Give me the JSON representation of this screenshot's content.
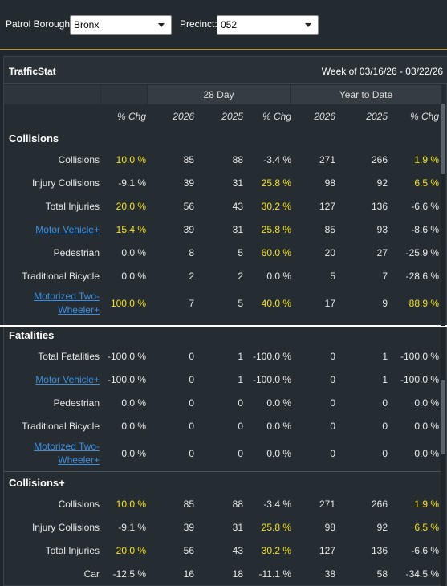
{
  "filters": {
    "borough_label": "Patrol Borough:",
    "borough_value": "Bronx",
    "precinct_label": "Precinct:",
    "precinct_value": "052"
  },
  "panel": {
    "title": "TrafficStat",
    "week": "Week of 03/16/26 - 03/22/26"
  },
  "groups": {
    "day28": "28 Day",
    "ytd": "Year to Date"
  },
  "columns": [
    "% Chg",
    "2026",
    "2025",
    "% Chg",
    "2026",
    "2025",
    "% Chg"
  ],
  "colors": {
    "highlight": "#f5e21a",
    "link": "#3d8fe0",
    "accent": "#b8932f"
  },
  "sections": [
    {
      "title": "Collisions",
      "rows": [
        {
          "label": "Collisions",
          "link": false,
          "v": [
            "10.0 %",
            "85",
            "88",
            "-3.4 %",
            "271",
            "266",
            "1.9 %"
          ],
          "hl": [
            0,
            6
          ]
        },
        {
          "label": "Injury Collisions",
          "link": false,
          "v": [
            "-9.1 %",
            "39",
            "31",
            "25.8 %",
            "98",
            "92",
            "6.5 %"
          ],
          "hl": [
            3,
            6
          ]
        },
        {
          "label": "Total Injuries",
          "link": false,
          "v": [
            "20.0 %",
            "56",
            "43",
            "30.2 %",
            "127",
            "136",
            "-6.6 %"
          ],
          "hl": [
            0,
            3
          ]
        },
        {
          "label": "Motor Vehicle+",
          "link": true,
          "v": [
            "15.4 %",
            "39",
            "31",
            "25.8 %",
            "85",
            "93",
            "-8.6 %"
          ],
          "hl": [
            0,
            3
          ]
        },
        {
          "label": "Pedestrian",
          "link": false,
          "v": [
            "0.0 %",
            "8",
            "5",
            "60.0 %",
            "20",
            "27",
            "-25.9 %"
          ],
          "hl": [
            3
          ]
        },
        {
          "label": "Traditional Bicycle",
          "link": false,
          "v": [
            "0.0 %",
            "2",
            "2",
            "0.0 %",
            "5",
            "7",
            "-28.6 %"
          ],
          "hl": []
        },
        {
          "label1": "Motorized Two-",
          "label2": "Wheeler+",
          "link": true,
          "v": [
            "100.0 %",
            "7",
            "5",
            "40.0 %",
            "17",
            "9",
            "88.9 %"
          ],
          "hl": [
            0,
            3,
            6
          ]
        }
      ]
    },
    {
      "title": "Fatalities",
      "rows": [
        {
          "label": "Total Fatalities",
          "link": false,
          "v": [
            "-100.0 %",
            "0",
            "1",
            "-100.0 %",
            "0",
            "1",
            "-100.0 %"
          ],
          "hl": []
        },
        {
          "label": "Motor Vehicle+",
          "link": true,
          "v": [
            "-100.0 %",
            "0",
            "1",
            "-100.0 %",
            "0",
            "1",
            "-100.0 %"
          ],
          "hl": []
        },
        {
          "label": "Pedestrian",
          "link": false,
          "v": [
            "0.0 %",
            "0",
            "0",
            "0.0 %",
            "0",
            "0",
            "0.0 %"
          ],
          "hl": []
        },
        {
          "label": "Traditional Bicycle",
          "link": false,
          "v": [
            "0.0 %",
            "0",
            "0",
            "0.0 %",
            "0",
            "0",
            "0.0 %"
          ],
          "hl": []
        },
        {
          "label1": "Motorized Two-",
          "label2": "Wheeler+",
          "link": true,
          "v": [
            "0.0 %",
            "0",
            "0",
            "0.0 %",
            "0",
            "0",
            "0.0 %"
          ],
          "hl": []
        }
      ]
    },
    {
      "title": "Collisions+",
      "rows": [
        {
          "label": "Collisions",
          "link": false,
          "v": [
            "10.0 %",
            "85",
            "88",
            "-3.4 %",
            "271",
            "266",
            "1.9 %"
          ],
          "hl": [
            0,
            6
          ]
        },
        {
          "label": "Injury Collisions",
          "link": false,
          "v": [
            "-9.1 %",
            "39",
            "31",
            "25.8 %",
            "98",
            "92",
            "6.5 %"
          ],
          "hl": [
            3,
            6
          ]
        },
        {
          "label": "Total Injuries",
          "link": false,
          "v": [
            "20.0 %",
            "56",
            "43",
            "30.2 %",
            "127",
            "136",
            "-6.6 %"
          ],
          "hl": [
            0,
            3
          ]
        },
        {
          "label": "Car",
          "link": false,
          "v": [
            "-12.5 %",
            "16",
            "18",
            "-11.1 %",
            "38",
            "58",
            "-34.5 %"
          ],
          "hl": []
        }
      ]
    }
  ]
}
